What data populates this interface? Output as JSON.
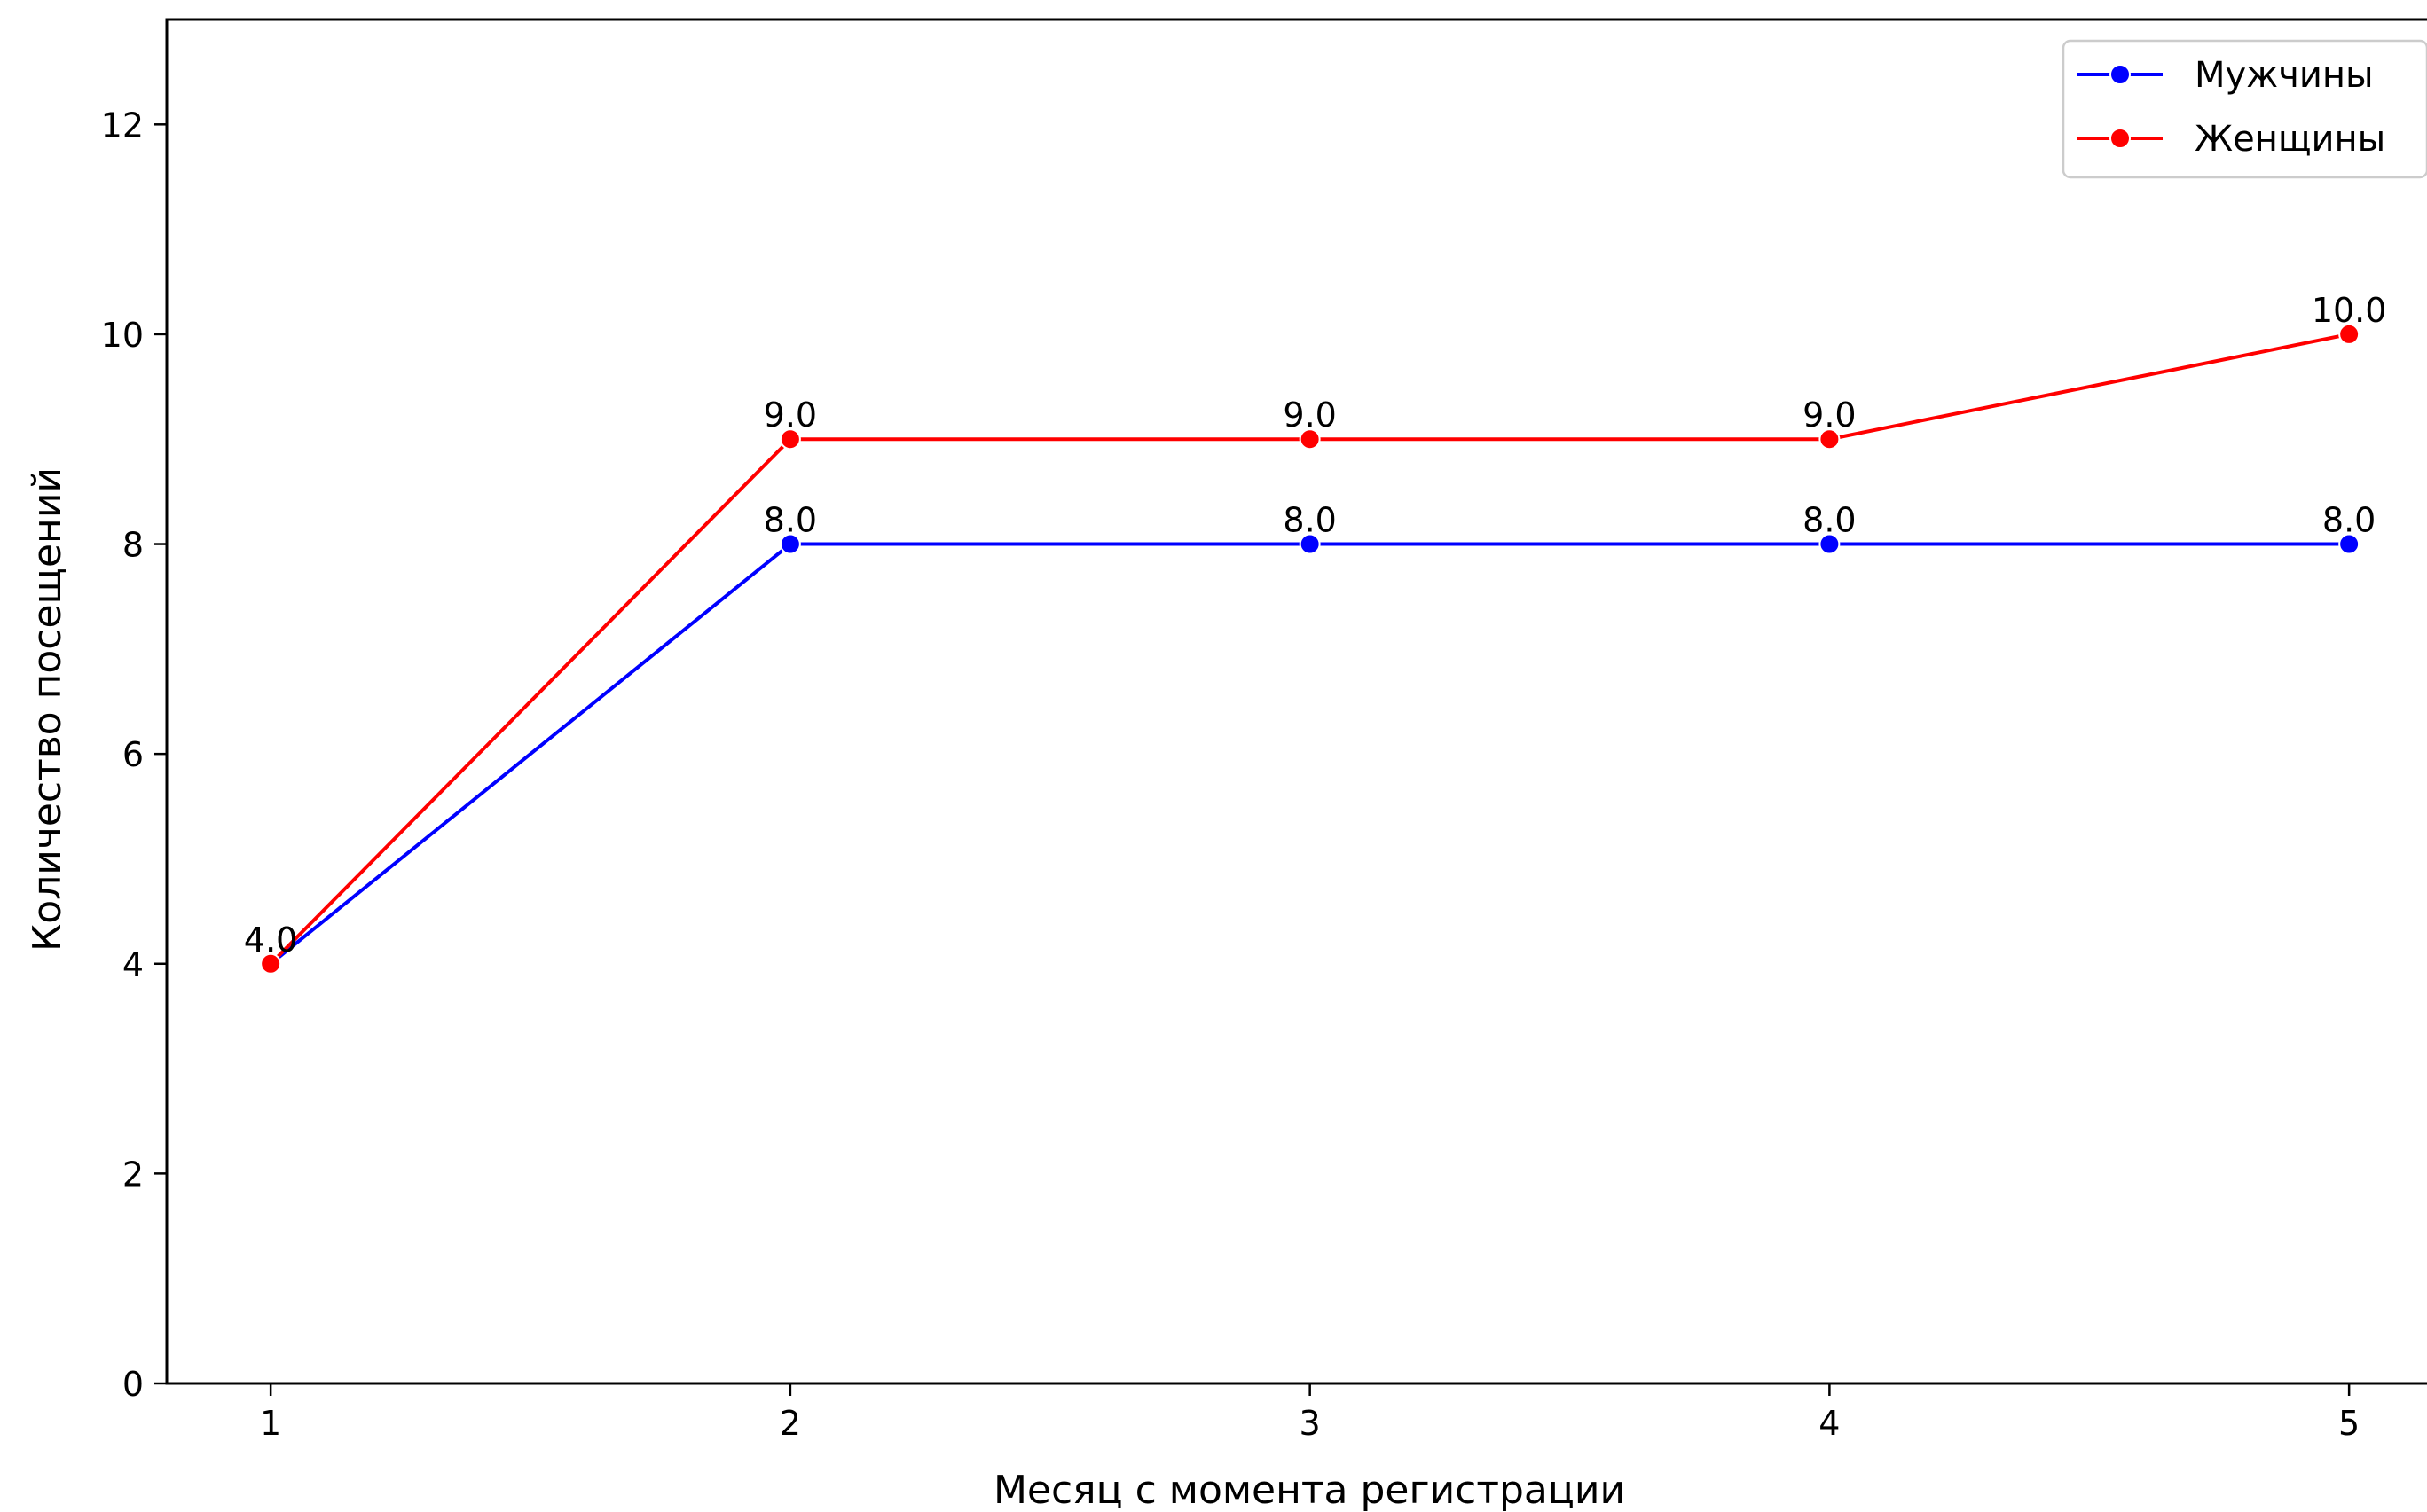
{
  "chart_data": {
    "type": "line",
    "title": "",
    "xlabel": "Месяц с момента регистрации",
    "ylabel": "Количество посещений",
    "x": [
      1,
      2,
      3,
      4,
      5
    ],
    "xlim": [
      0.8,
      5.15
    ],
    "ylim": [
      0,
      13
    ],
    "xticks": [
      "1",
      "2",
      "3",
      "4",
      "5"
    ],
    "yticks": [
      "0",
      "2",
      "4",
      "6",
      "8",
      "10",
      "12"
    ],
    "grid": false,
    "legend_position": "top-right",
    "series": [
      {
        "name": "Мужчины",
        "color": "#0000ff",
        "marker": "circle",
        "values": [
          4.0,
          8.0,
          8.0,
          8.0,
          8.0
        ],
        "labels": [
          "4.0",
          "8.0",
          "8.0",
          "8.0",
          "8.0"
        ]
      },
      {
        "name": "Женщины",
        "color": "#ff0000",
        "marker": "circle",
        "values": [
          4.0,
          9.0,
          9.0,
          9.0,
          10.0
        ],
        "labels": [
          "4.0",
          "9.0",
          "9.0",
          "9.0",
          "10.0"
        ]
      }
    ]
  }
}
